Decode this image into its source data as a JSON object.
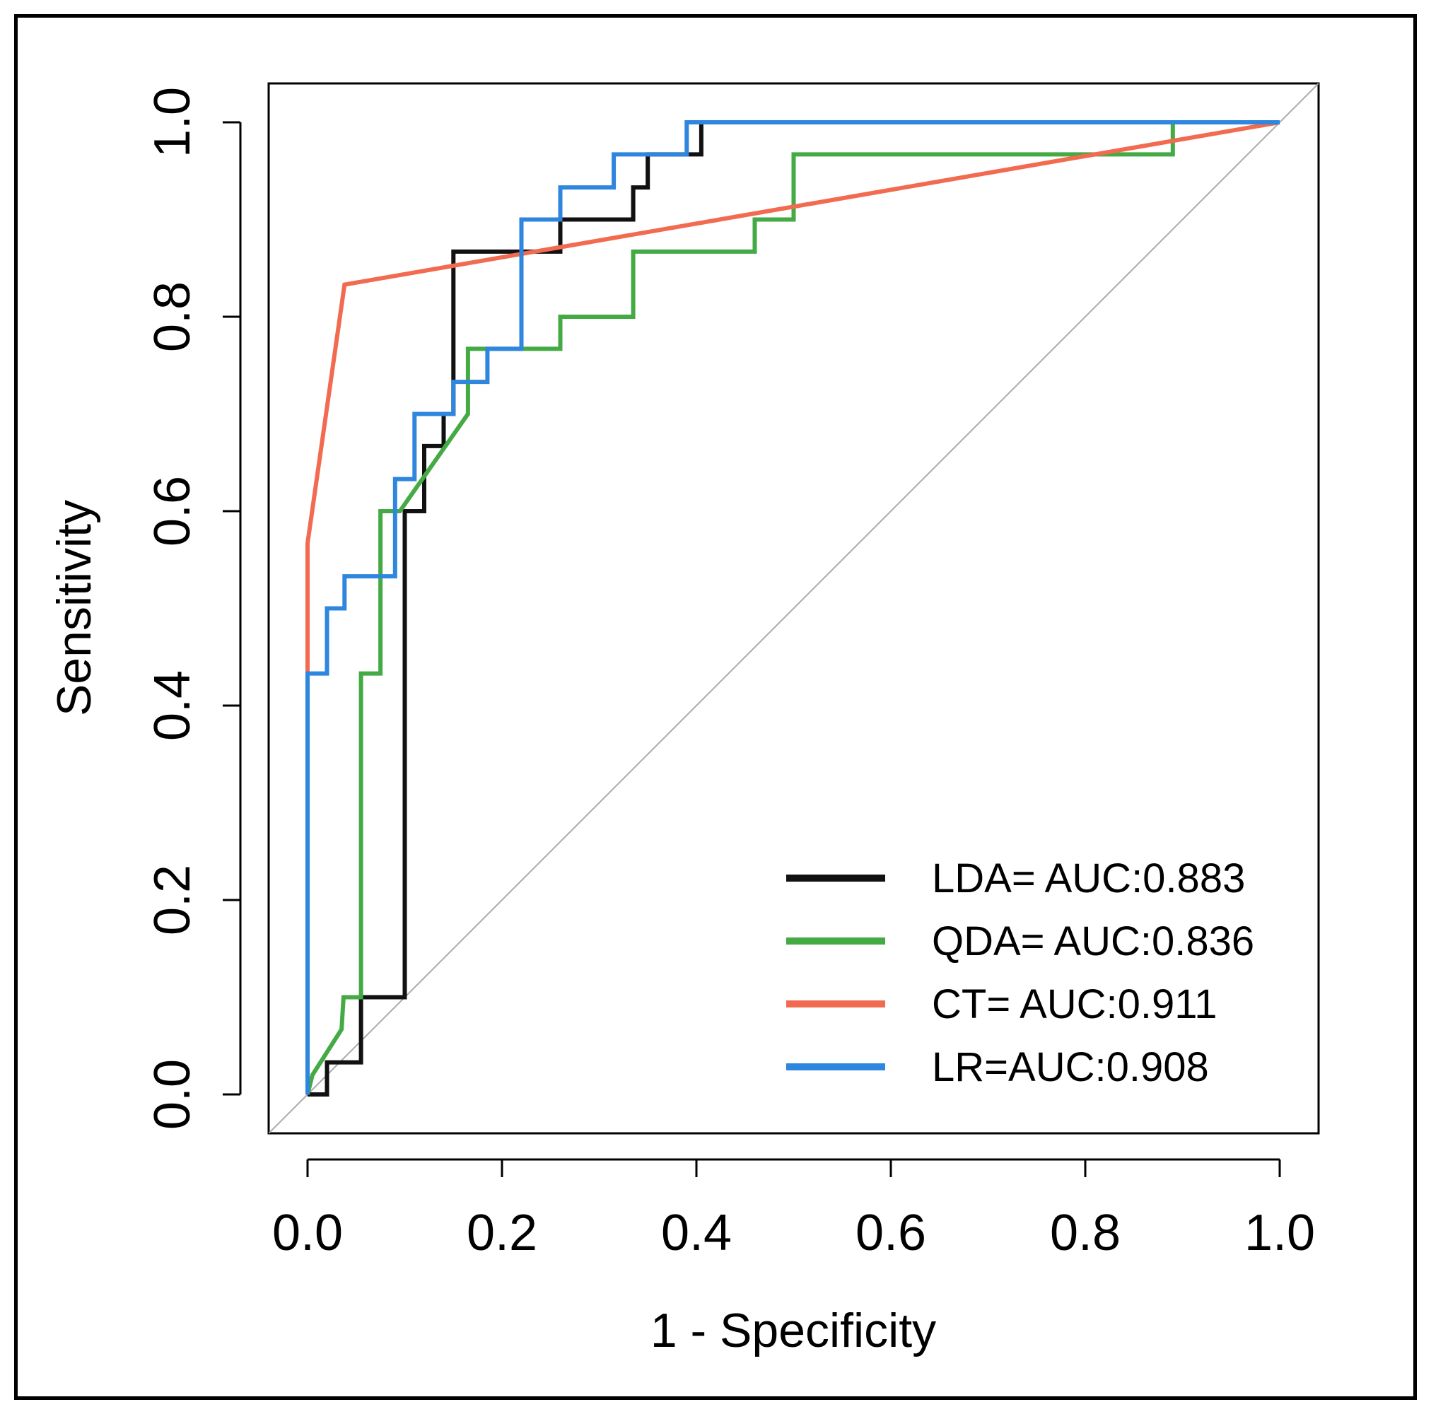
{
  "chart_data": {
    "type": "line",
    "title": "",
    "xlabel": "1 - Specificity",
    "ylabel": "Sensitivity",
    "xlim": [
      -0.04,
      1.04
    ],
    "ylim": [
      -0.04,
      1.04
    ],
    "xticks": [
      "0.0",
      "0.2",
      "0.4",
      "0.6",
      "0.8",
      "1.0"
    ],
    "yticks": [
      "0.0",
      "0.2",
      "0.4",
      "0.6",
      "0.8",
      "1.0"
    ],
    "grid": false,
    "legend_position": "bottom-right",
    "reference_line": {
      "x": [
        -0.04,
        1.04
      ],
      "y": [
        -0.04,
        1.04
      ],
      "color": "#aaaaaa"
    },
    "series": [
      {
        "name": "LDA= AUC:0.883",
        "color": "#111111",
        "x": [
          0.0,
          0.02,
          0.02,
          0.055,
          0.055,
          0.1,
          0.1,
          0.12,
          0.12,
          0.14,
          0.14,
          0.15,
          0.15,
          0.26,
          0.26,
          0.335,
          0.335,
          0.35,
          0.35,
          0.4,
          0.4,
          0.405,
          0.405,
          1.0
        ],
        "y": [
          0.0,
          0.0,
          0.033,
          0.033,
          0.1,
          0.1,
          0.6,
          0.6,
          0.667,
          0.667,
          0.7,
          0.7,
          0.867,
          0.867,
          0.9,
          0.9,
          0.933,
          0.933,
          0.967,
          0.967,
          0.967,
          0.967,
          1.0,
          1.0
        ]
      },
      {
        "name": "QDA= AUC:0.836",
        "color": "#44aa44",
        "x": [
          0.0,
          0.005,
          0.035,
          0.037,
          0.055,
          0.055,
          0.075,
          0.075,
          0.075,
          0.095,
          0.165,
          0.165,
          0.26,
          0.26,
          0.335,
          0.335,
          0.46,
          0.46,
          0.5,
          0.5,
          0.89,
          0.89,
          1.0
        ],
        "y": [
          0.0,
          0.02,
          0.067,
          0.1,
          0.1,
          0.433,
          0.433,
          0.6,
          0.6,
          0.6,
          0.7,
          0.767,
          0.767,
          0.8,
          0.8,
          0.867,
          0.867,
          0.9,
          0.9,
          0.967,
          0.967,
          1.0,
          1.0
        ]
      },
      {
        "name": "CT= AUC:0.911",
        "color": "#f26b50",
        "x": [
          0.0,
          0.0,
          0.038,
          1.0
        ],
        "y": [
          0.433,
          0.567,
          0.833,
          1.0
        ]
      },
      {
        "name": "LR=AUC:0.908",
        "color": "#2e86de",
        "x": [
          0.0,
          0.0,
          0.02,
          0.02,
          0.038,
          0.038,
          0.09,
          0.09,
          0.11,
          0.11,
          0.15,
          0.15,
          0.185,
          0.185,
          0.22,
          0.22,
          0.26,
          0.26,
          0.315,
          0.315,
          0.39,
          0.39,
          1.0
        ],
        "y": [
          0.0,
          0.433,
          0.433,
          0.5,
          0.5,
          0.533,
          0.533,
          0.633,
          0.633,
          0.7,
          0.7,
          0.733,
          0.733,
          0.767,
          0.767,
          0.9,
          0.9,
          0.933,
          0.933,
          0.967,
          0.967,
          1.0,
          1.0
        ]
      }
    ]
  }
}
